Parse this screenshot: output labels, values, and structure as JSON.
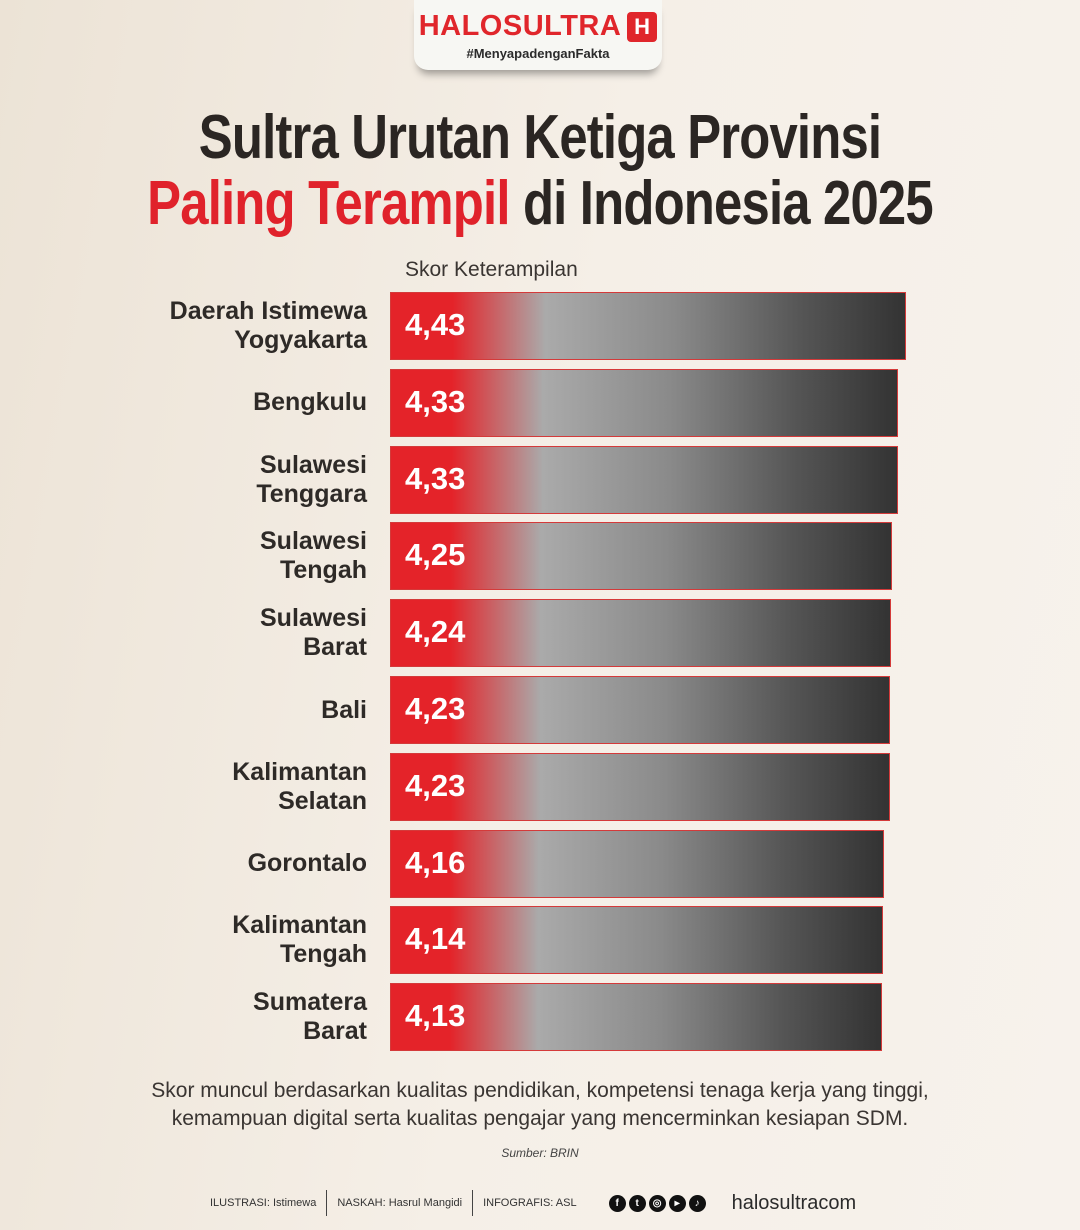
{
  "logo": {
    "brand": "HALOSULTRA",
    "icon": "H",
    "tagline": "#MenyapadenganFakta"
  },
  "title": {
    "line1": "Sultra Urutan Ketiga Provinsi",
    "line2_highlight": "Paling Terampil",
    "line2_rest": " di Indonesia 2025"
  },
  "colors": {
    "accent": "#e0222b",
    "text": "#2e2a27"
  },
  "chart_data": {
    "type": "bar",
    "orientation": "horizontal",
    "xlabel": "Skor Keterampilan",
    "categories": [
      "Daerah Istimewa Yogyakarta",
      "Bengkulu",
      "Sulawesi Tenggara",
      "Sulawesi Tengah",
      "Sulawesi Barat",
      "Bali",
      "Kalimantan Selatan",
      "Gorontalo",
      "Kalimantan Tengah",
      "Sumatera Barat"
    ],
    "values": [
      4.43,
      4.33,
      4.33,
      4.25,
      4.24,
      4.23,
      4.23,
      4.16,
      4.14,
      4.13
    ],
    "value_labels": [
      "4,43",
      "4,33",
      "4,33",
      "4,25",
      "4,24",
      "4,23",
      "4,23",
      "4,16",
      "4,14",
      "4,13"
    ],
    "label_lines": [
      [
        "Daerah Istimewa",
        "Yogyakarta"
      ],
      [
        "Bengkulu"
      ],
      [
        "Sulawesi",
        "Tenggara"
      ],
      [
        "Sulawesi",
        "Tengah"
      ],
      [
        "Sulawesi",
        "Barat"
      ],
      [
        "Bali"
      ],
      [
        "Kalimantan",
        "Selatan"
      ],
      [
        "Gorontalo"
      ],
      [
        "Kalimantan",
        "Tengah"
      ],
      [
        "Sumatera",
        "Barat"
      ]
    ]
  },
  "note": {
    "line1": "Skor muncul berdasarkan kualitas pendidikan, kompetensi tenaga kerja yang tinggi,",
    "line2": "kemampuan digital serta kualitas pengajar yang mencerminkan kesiapan SDM."
  },
  "source": "Sumber: BRIN",
  "footer": {
    "ilustrasi": "ILUSTRASI: Istimewa",
    "naskah": "NASKAH: Hasrul Mangidi",
    "infografis": "INFOGRAFIS: ASL",
    "social_icons": [
      "facebook-icon",
      "twitter-icon",
      "instagram-icon",
      "youtube-icon",
      "tiktok-icon"
    ],
    "site": "halosultracom"
  }
}
